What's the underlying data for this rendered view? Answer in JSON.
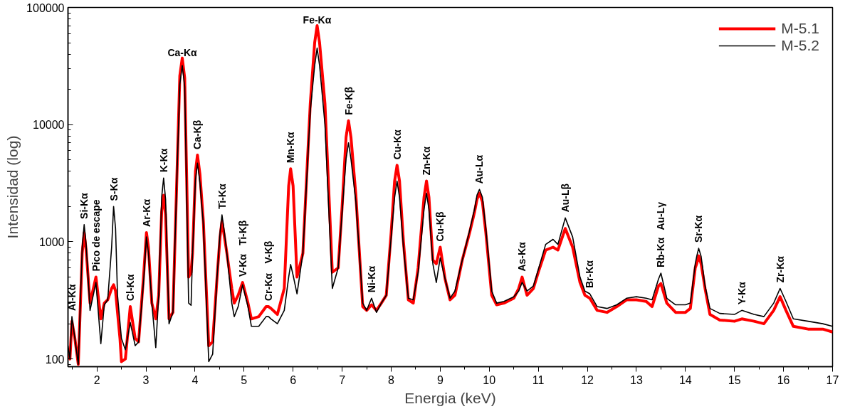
{
  "chart_data": {
    "type": "line",
    "xlabel": "Energia (keV)",
    "ylabel": "Intensidad (log)",
    "log": "y",
    "grid": false,
    "legend": "top right",
    "line_style": "solid",
    "marker": "none",
    "xlim": [
      1.41,
      17
    ],
    "xticks": [
      2,
      3,
      4,
      5,
      6,
      7,
      8,
      9,
      10,
      11,
      12,
      13,
      14,
      15,
      16,
      17
    ],
    "ylim": [
      86,
      100000
    ],
    "yticks": [
      100,
      1000,
      10000,
      100000
    ],
    "x": [
      1.41,
      1.45,
      1.49,
      1.55,
      1.62,
      1.7,
      1.74,
      1.78,
      1.86,
      1.98,
      2.08,
      2.15,
      2.22,
      2.3,
      2.34,
      2.38,
      2.42,
      2.47,
      2.5,
      2.58,
      2.68,
      2.78,
      2.85,
      2.95,
      3.01,
      3.05,
      3.12,
      3.2,
      3.26,
      3.32,
      3.36,
      3.4,
      3.47,
      3.55,
      3.62,
      3.69,
      3.74,
      3.79,
      3.87,
      3.92,
      3.95,
      4.01,
      4.05,
      4.1,
      4.17,
      4.28,
      4.36,
      4.45,
      4.51,
      4.55,
      4.6,
      4.65,
      4.75,
      4.8,
      4.88,
      4.97,
      5.08,
      5.15,
      5.3,
      5.45,
      5.5,
      5.55,
      5.68,
      5.82,
      5.91,
      5.95,
      6.0,
      6.08,
      6.2,
      6.35,
      6.44,
      6.49,
      6.54,
      6.65,
      6.8,
      6.92,
      7.0,
      7.08,
      7.13,
      7.18,
      7.28,
      7.42,
      7.5,
      7.6,
      7.7,
      7.8,
      7.9,
      8.0,
      8.07,
      8.12,
      8.17,
      8.25,
      8.35,
      8.45,
      8.55,
      8.67,
      8.72,
      8.77,
      8.85,
      8.92,
      9.0,
      9.1,
      9.2,
      9.3,
      9.45,
      9.6,
      9.7,
      9.75,
      9.8,
      9.86,
      9.93,
      10.05,
      10.15,
      10.3,
      10.5,
      10.6,
      10.67,
      10.77,
      10.9,
      11.0,
      11.15,
      11.3,
      11.4,
      11.55,
      11.7,
      11.85,
      11.95,
      12.05,
      12.2,
      12.4,
      12.6,
      12.8,
      13.0,
      13.2,
      13.32,
      13.45,
      13.5,
      13.62,
      13.8,
      14.0,
      14.1,
      14.2,
      14.23,
      14.27,
      14.32,
      14.4,
      14.5,
      14.7,
      15.0,
      15.15,
      15.4,
      15.6,
      15.8,
      15.93,
      16.05,
      16.2,
      16.5,
      16.8,
      17.0
    ],
    "series": [
      {
        "name": "M-5.1",
        "color": "#ff0000",
        "values": [
          110,
          100,
          210,
          150,
          90,
          800,
          1200,
          850,
          300,
          500,
          220,
          300,
          320,
          400,
          430,
          380,
          250,
          150,
          95,
          100,
          280,
          150,
          140,
          500,
          1200,
          900,
          300,
          220,
          350,
          1800,
          2500,
          1700,
          220,
          250,
          2500,
          26000,
          37000,
          25000,
          500,
          550,
          800,
          4000,
          5500,
          3800,
          1500,
          130,
          140,
          500,
          1100,
          1500,
          1100,
          800,
          400,
          300,
          350,
          450,
          300,
          220,
          230,
          280,
          280,
          270,
          240,
          400,
          3000,
          4200,
          3000,
          500,
          800,
          15000,
          50000,
          70000,
          50000,
          15000,
          550,
          600,
          2000,
          7800,
          10800,
          7800,
          2500,
          280,
          260,
          290,
          260,
          300,
          350,
          1200,
          3300,
          4500,
          3300,
          1000,
          320,
          300,
          600,
          2400,
          3300,
          2400,
          700,
          650,
          900,
          480,
          320,
          350,
          700,
          1200,
          1800,
          2300,
          2600,
          2200,
          1200,
          350,
          290,
          300,
          330,
          400,
          500,
          350,
          400,
          550,
          850,
          900,
          850,
          1300,
          900,
          450,
          350,
          330,
          260,
          250,
          280,
          320,
          320,
          310,
          280,
          420,
          440,
          300,
          250,
          250,
          270,
          600,
          650,
          760,
          650,
          400,
          240,
          215,
          210,
          220,
          210,
          200,
          260,
          340,
          260,
          190,
          180,
          180,
          170
        ]
      },
      {
        "name": "M-5.2",
        "color": "#000000",
        "values": [
          130,
          100,
          230,
          150,
          90,
          900,
          1400,
          950,
          260,
          450,
          135,
          290,
          320,
          900,
          2000,
          1300,
          350,
          205,
          150,
          120,
          205,
          130,
          140,
          450,
          1100,
          800,
          300,
          125,
          350,
          2400,
          3500,
          2300,
          200,
          250,
          2500,
          22000,
          32000,
          21000,
          300,
          287,
          800,
          3400,
          4700,
          3200,
          1400,
          95,
          110,
          500,
          1200,
          1700,
          1200,
          800,
          300,
          230,
          280,
          430,
          280,
          190,
          190,
          230,
          230,
          220,
          200,
          260,
          500,
          640,
          520,
          360,
          800,
          13000,
          32000,
          45000,
          32000,
          10000,
          400,
          600,
          1800,
          5100,
          7000,
          5100,
          2200,
          300,
          260,
          330,
          250,
          300,
          350,
          1100,
          2400,
          3300,
          2400,
          900,
          330,
          320,
          550,
          1900,
          2600,
          1900,
          650,
          450,
          730,
          480,
          330,
          380,
          700,
          1250,
          1900,
          2500,
          2800,
          2400,
          1300,
          380,
          300,
          310,
          340,
          380,
          450,
          380,
          420,
          580,
          950,
          1050,
          950,
          1600,
          1100,
          500,
          380,
          360,
          280,
          270,
          290,
          330,
          340,
          330,
          320,
          480,
          540,
          330,
          290,
          290,
          300,
          650,
          750,
          880,
          750,
          420,
          270,
          245,
          240,
          260,
          240,
          230,
          300,
          400,
          310,
          220,
          210,
          200,
          190
        ]
      }
    ],
    "annotations": [
      {
        "text": "Al-Kα",
        "x": 1.49,
        "y": 230
      },
      {
        "text": "Si-Kα",
        "x": 1.74,
        "y": 1400
      },
      {
        "text": "Pico de escape",
        "x": 1.98,
        "y": 500
      },
      {
        "text": "S-Kα",
        "x": 2.34,
        "y": 2000
      },
      {
        "text": "Cl-Kα",
        "x": 2.68,
        "y": 280
      },
      {
        "text": "Ar-Kα",
        "x": 3.01,
        "y": 1200
      },
      {
        "text": "K-Kα",
        "x": 3.36,
        "y": 3500
      },
      {
        "text": "Ca-Kα",
        "x": 3.74,
        "y": 37000
      },
      {
        "text": "Ca-Kβ",
        "x": 4.05,
        "y": 5500
      },
      {
        "text": "Ti-Kα",
        "x": 4.55,
        "y": 1700
      },
      {
        "text": "V-Kα",
        "x": 4.97,
        "y": 450
      },
      "Ti-Kβ",
      {
        "text": "Cr-Kα",
        "x": 5.5,
        "y": 280
      },
      "V-Kβ",
      {
        "text": "Mn-Kα",
        "x": 5.95,
        "y": 4200
      },
      {
        "text": "Fe-Kα",
        "x": 6.49,
        "y": 70000
      },
      {
        "text": "Fe-Kβ",
        "x": 7.13,
        "y": 10800
      },
      {
        "text": "Ni-Kα",
        "x": 7.6,
        "y": 330
      },
      {
        "text": "Cu-Kα",
        "x": 8.12,
        "y": 4500
      },
      {
        "text": "Zn-Kα",
        "x": 8.72,
        "y": 3300
      },
      {
        "text": "Cu-Kβ",
        "x": 9.0,
        "y": 900
      },
      {
        "text": "Au-Lα",
        "x": 9.8,
        "y": 2800
      },
      {
        "text": "As-Kα",
        "x": 10.67,
        "y": 500
      },
      {
        "text": "Au-Lβ",
        "x": 11.55,
        "y": 1600
      },
      {
        "text": "Br-Kα",
        "x": 12.05,
        "y": 360
      },
      {
        "text": "Rb-Kα",
        "x": 13.5,
        "y": 540
      },
      "Au-Lγ",
      {
        "text": "Sr-Kα",
        "x": 14.27,
        "y": 880
      },
      {
        "text": "Y-Kα",
        "x": 15.15,
        "y": 260
      },
      {
        "text": "Zr-Kα",
        "x": 15.93,
        "y": 400
      }
    ]
  }
}
